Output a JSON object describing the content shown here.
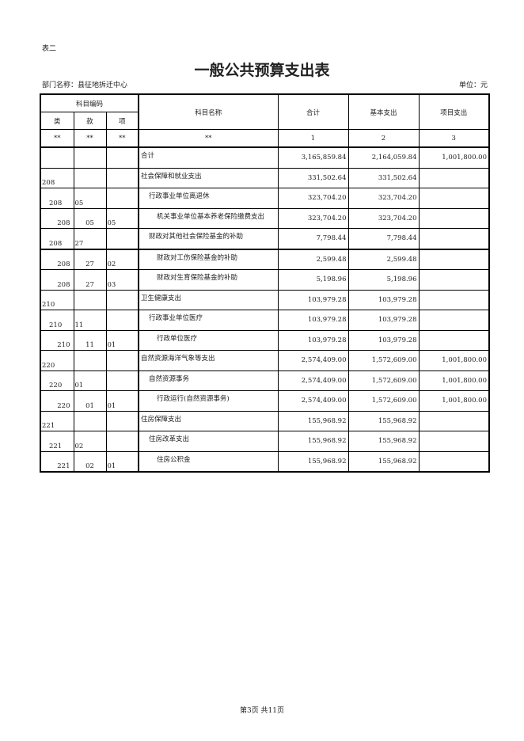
{
  "table_tag": "表二",
  "title": "一般公共预算支出表",
  "department": "部门名称：县征地拆迁中心",
  "unit": "单位：元",
  "headers": {
    "code_group": "科目编码",
    "lei": "类",
    "kuan": "款",
    "xiang": "项",
    "name": "科目名称",
    "total": "合计",
    "basic": "基本支出",
    "project": "项目支出"
  },
  "index_row": [
    "**",
    "**",
    "**",
    "**",
    "1",
    "2",
    "3"
  ],
  "rows": [
    {
      "lei": "",
      "kuan": "",
      "xiang": "",
      "name": "合计",
      "level": 0,
      "total": "3,165,859.84",
      "basic": "2,164,059.84",
      "project": "1,001,800.00"
    },
    {
      "lei": "208",
      "kuan": "",
      "xiang": "",
      "name": "社会保障和就业支出",
      "level": 1,
      "total": "331,502.64",
      "basic": "331,502.64",
      "project": ""
    },
    {
      "lei": "208",
      "kuan": "05",
      "xiang": "",
      "name": "行政事业单位离退休",
      "level": 2,
      "total": "323,704.20",
      "basic": "323,704.20",
      "project": ""
    },
    {
      "lei": "208",
      "kuan": "05",
      "xiang": "05",
      "name": "机关事业单位基本养老保险缴费支出",
      "level": 3,
      "total": "323,704.20",
      "basic": "323,704.20",
      "project": ""
    },
    {
      "lei": "208",
      "kuan": "27",
      "xiang": "",
      "name": "财政对其他社会保险基金的补助",
      "level": 2,
      "total": "7,798.44",
      "basic": "7,798.44",
      "project": ""
    },
    {
      "lei": "208",
      "kuan": "27",
      "xiang": "02",
      "name": "财政对工伤保险基金的补助",
      "level": 3,
      "total": "2,599.48",
      "basic": "2,599.48",
      "project": ""
    },
    {
      "lei": "208",
      "kuan": "27",
      "xiang": "03",
      "name": "财政对生育保险基金的补助",
      "level": 3,
      "total": "5,198.96",
      "basic": "5,198.96",
      "project": ""
    },
    {
      "lei": "210",
      "kuan": "",
      "xiang": "",
      "name": "卫生健康支出",
      "level": 1,
      "total": "103,979.28",
      "basic": "103,979.28",
      "project": ""
    },
    {
      "lei": "210",
      "kuan": "11",
      "xiang": "",
      "name": "行政事业单位医疗",
      "level": 2,
      "total": "103,979.28",
      "basic": "103,979.28",
      "project": ""
    },
    {
      "lei": "210",
      "kuan": "11",
      "xiang": "01",
      "name": "行政单位医疗",
      "level": 3,
      "total": "103,979.28",
      "basic": "103,979.28",
      "project": ""
    },
    {
      "lei": "220",
      "kuan": "",
      "xiang": "",
      "name": "自然资源海洋气象等支出",
      "level": 1,
      "total": "2,574,409.00",
      "basic": "1,572,609.00",
      "project": "1,001,800.00"
    },
    {
      "lei": "220",
      "kuan": "01",
      "xiang": "",
      "name": "自然资源事务",
      "level": 2,
      "total": "2,574,409.00",
      "basic": "1,572,609.00",
      "project": "1,001,800.00"
    },
    {
      "lei": "220",
      "kuan": "01",
      "xiang": "01",
      "name": "行政运行(自然资源事务)",
      "level": 3,
      "total": "2,574,409.00",
      "basic": "1,572,609.00",
      "project": "1,001,800.00"
    },
    {
      "lei": "221",
      "kuan": "",
      "xiang": "",
      "name": "住房保障支出",
      "level": 1,
      "total": "155,968.92",
      "basic": "155,968.92",
      "project": ""
    },
    {
      "lei": "221",
      "kuan": "02",
      "xiang": "",
      "name": "住房改革支出",
      "level": 2,
      "total": "155,968.92",
      "basic": "155,968.92",
      "project": ""
    },
    {
      "lei": "221",
      "kuan": "02",
      "xiang": "01",
      "name": "住房公积金",
      "level": 3,
      "total": "155,968.92",
      "basic": "155,968.92",
      "project": ""
    }
  ],
  "footer": "第3页  共11页"
}
